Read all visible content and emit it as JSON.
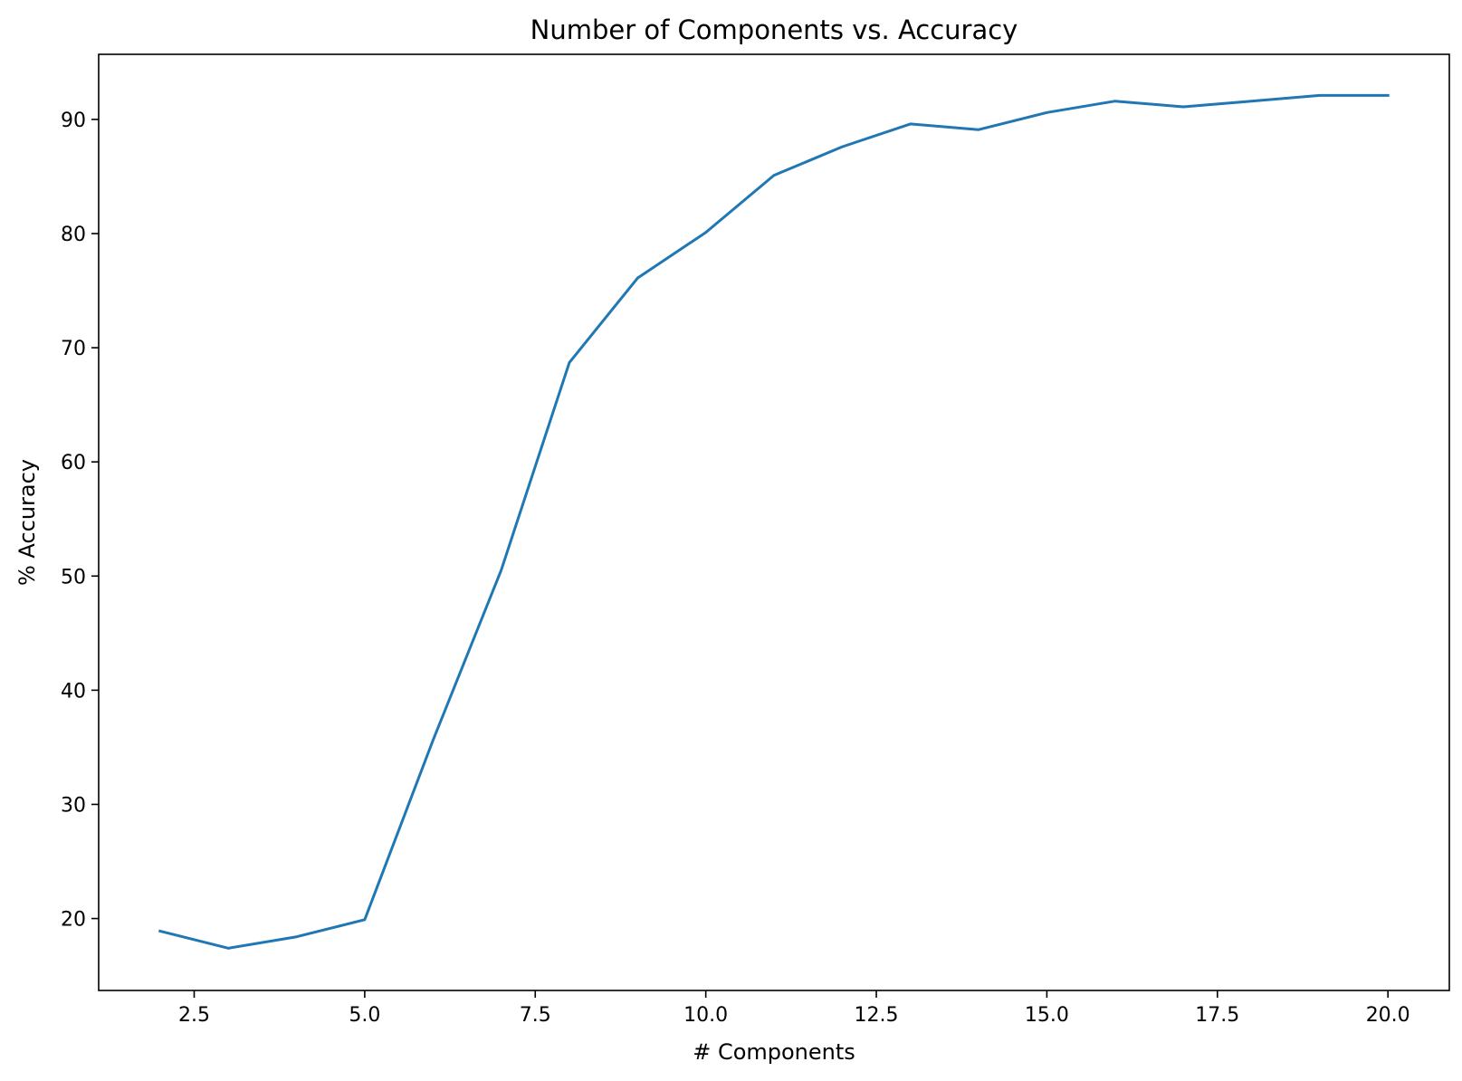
{
  "chart_data": {
    "type": "line",
    "title": "Number of Components vs. Accuracy",
    "xlabel": "# Components",
    "ylabel": "% Accuracy",
    "xlim": [
      1.1,
      20.9
    ],
    "ylim": [
      13.7,
      95.7
    ],
    "x_ticks": [
      2.5,
      5.0,
      7.5,
      10.0,
      12.5,
      15.0,
      17.5,
      20.0
    ],
    "x_tick_labels": [
      "2.5",
      "5.0",
      "7.5",
      "10.0",
      "12.5",
      "15.0",
      "17.5",
      "20.0"
    ],
    "y_ticks": [
      20,
      30,
      40,
      50,
      60,
      70,
      80,
      90
    ],
    "y_tick_labels": [
      "20",
      "30",
      "40",
      "50",
      "60",
      "70",
      "80",
      "90"
    ],
    "grid": false,
    "series": [
      {
        "color": "#1f77b4",
        "x": [
          2,
          3,
          4,
          5,
          6,
          7,
          8,
          9,
          10,
          11,
          12,
          13,
          14,
          15,
          16,
          17,
          18,
          19,
          20
        ],
        "y": [
          18.9,
          17.4,
          18.4,
          19.9,
          35.6,
          50.5,
          68.7,
          76.1,
          80.1,
          85.1,
          87.6,
          89.6,
          89.1,
          90.6,
          91.6,
          91.1,
          91.6,
          92.1,
          92.1
        ]
      }
    ]
  }
}
